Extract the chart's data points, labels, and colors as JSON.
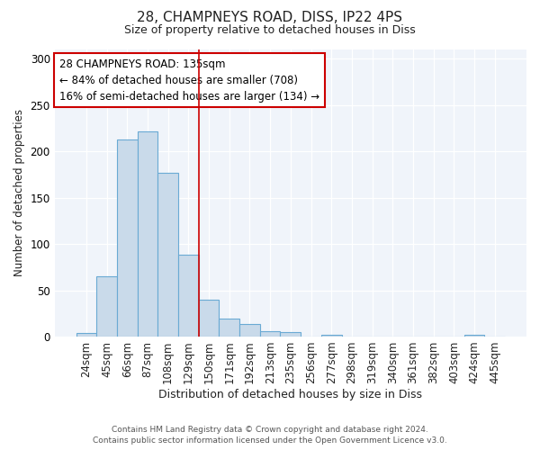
{
  "title1": "28, CHAMPNEYS ROAD, DISS, IP22 4PS",
  "title2": "Size of property relative to detached houses in Diss",
  "xlabel": "Distribution of detached houses by size in Diss",
  "ylabel": "Number of detached properties",
  "bar_color": "#c9daea",
  "bar_edge_color": "#6aaad4",
  "categories": [
    "24sqm",
    "45sqm",
    "66sqm",
    "87sqm",
    "108sqm",
    "129sqm",
    "150sqm",
    "171sqm",
    "192sqm",
    "213sqm",
    "235sqm",
    "256sqm",
    "277sqm",
    "298sqm",
    "319sqm",
    "340sqm",
    "361sqm",
    "382sqm",
    "403sqm",
    "424sqm",
    "445sqm"
  ],
  "values": [
    4,
    65,
    213,
    222,
    177,
    88,
    40,
    19,
    14,
    6,
    5,
    0,
    2,
    0,
    0,
    0,
    0,
    0,
    0,
    2,
    0
  ],
  "vline_x": 5.5,
  "vline_color": "#cc0000",
  "annotation_text": "28 CHAMPNEYS ROAD: 135sqm\n← 84% of detached houses are smaller (708)\n16% of semi-detached houses are larger (134) →",
  "annotation_box_color": "#ffffff",
  "annotation_box_edge": "#cc0000",
  "ylim": [
    0,
    310
  ],
  "yticks": [
    0,
    50,
    100,
    150,
    200,
    250,
    300
  ],
  "fig_bg": "#ffffff",
  "axes_bg": "#f0f4fa",
  "grid_color": "#ffffff",
  "footer": "Contains HM Land Registry data © Crown copyright and database right 2024.\nContains public sector information licensed under the Open Government Licence v3.0."
}
